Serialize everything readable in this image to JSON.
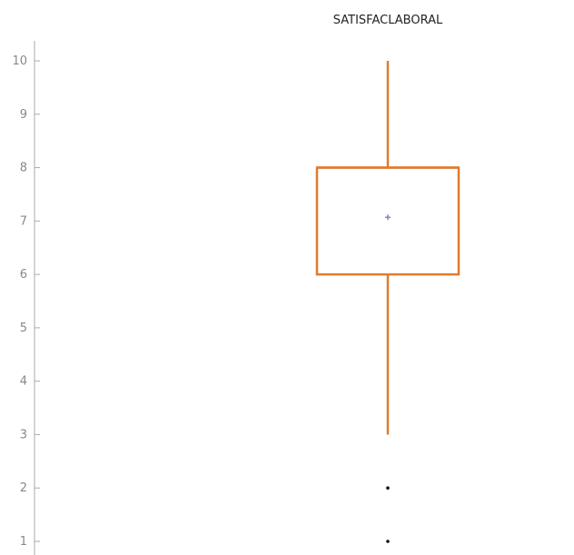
{
  "chart_data": {
    "type": "box",
    "title": "SATISFACLABORAL",
    "ylim": [
      1,
      10
    ],
    "yticks": [
      1,
      2,
      3,
      4,
      5,
      6,
      7,
      8,
      9,
      10
    ],
    "grid": false,
    "series": [
      {
        "min": 3,
        "q1": 6,
        "median": 8,
        "q3": 8,
        "max": 10,
        "mean": 7.07,
        "outliers": [
          2,
          1
        ]
      }
    ],
    "colors": {
      "box": "#e07a2f",
      "mean": "#8a7fc8",
      "outlier": "#111111",
      "axis": "#aaaaaa"
    }
  }
}
